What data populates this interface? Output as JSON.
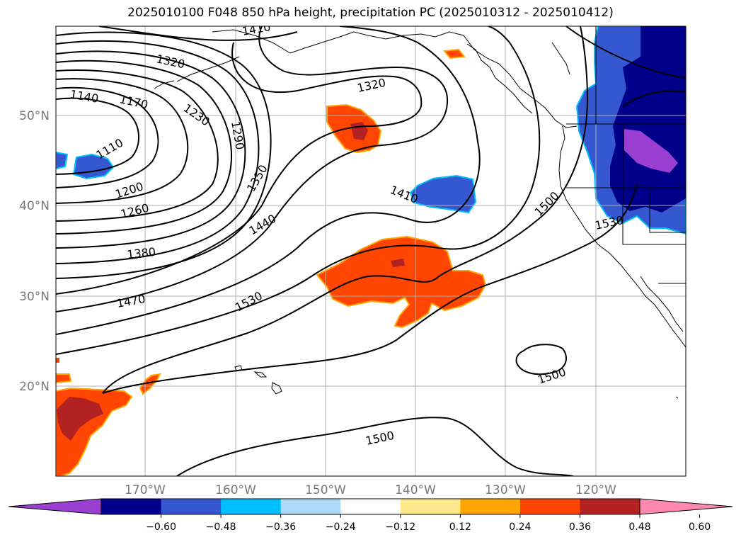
{
  "title": "2025010100 F048 850 hPa height, precipitation PC (2025010312 - 2025010412)",
  "map": {
    "lat_labels": [
      "50°N",
      "40°N",
      "30°N",
      "20°N"
    ],
    "lon_labels": [
      "170°W",
      "160°W",
      "150°W",
      "140°W",
      "130°W",
      "120°W"
    ],
    "contour_labels": [
      "1410",
      "1320",
      "1140",
      "1170",
      "1230",
      "1290",
      "1110",
      "1320",
      "1350",
      "1200",
      "1260",
      "1410",
      "1500",
      "1440",
      "1380",
      "1530",
      "1470",
      "1530",
      "1500",
      "1500"
    ]
  },
  "colorbar": {
    "colors": [
      "#9a3fd2",
      "#00008b",
      "#3558d0",
      "#00bfff",
      "#add8f7",
      "#ffffff",
      "#ffe98a",
      "#ffa500",
      "#ff4500",
      "#b22222",
      "#ff88b0"
    ],
    "ticks": [
      "−0.60",
      "−0.48",
      "−0.36",
      "−0.24",
      "−0.12",
      "0.12",
      "0.24",
      "0.36",
      "0.48",
      "0.60"
    ]
  }
}
